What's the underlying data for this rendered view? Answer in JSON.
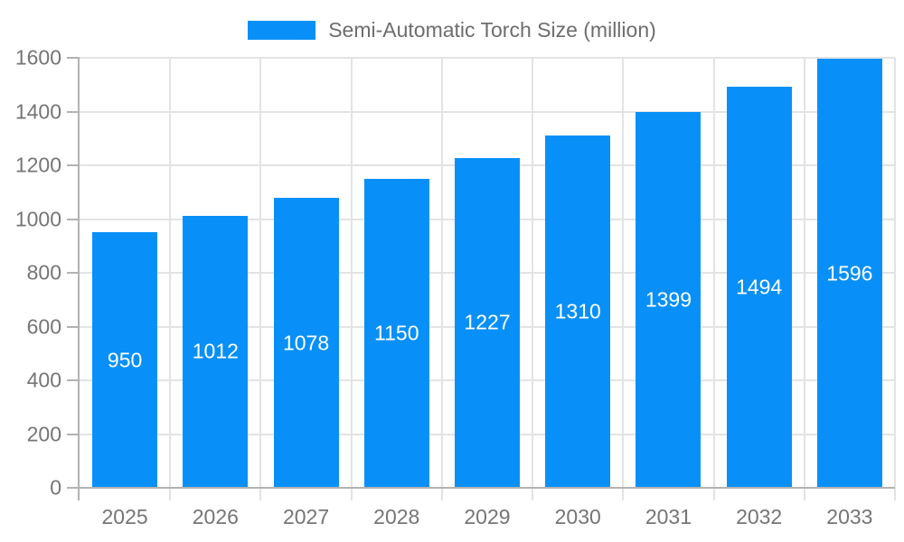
{
  "chart_data": {
    "type": "bar",
    "title": "Semi-Automatic Torch Size (million)",
    "legend_entries": [
      "Semi-Automatic Torch Size (million)"
    ],
    "legend_position": "top-center",
    "categories": [
      "2025",
      "2026",
      "2027",
      "2028",
      "2029",
      "2030",
      "2031",
      "2032",
      "2033"
    ],
    "values": [
      950,
      1012,
      1078,
      1150,
      1227,
      1310,
      1399,
      1494,
      1596
    ],
    "value_labels": [
      "950",
      "1012",
      "1078",
      "1150",
      "1227",
      "1310",
      "1399",
      "1494",
      "1596"
    ],
    "xlabel": "",
    "ylabel": "",
    "ylim": [
      0,
      1600
    ],
    "yticks": [
      0,
      200,
      400,
      600,
      800,
      1000,
      1200,
      1400,
      1600
    ],
    "grid": true,
    "colors": {
      "bar": "#0990F8",
      "bar_label": "#FFFFFF",
      "axis": "#B2B2B2",
      "gridline": "#E3E3E3",
      "tick_label": "#757575",
      "legend_text": "#6D6D6D",
      "background": "#FFFFFF"
    }
  }
}
